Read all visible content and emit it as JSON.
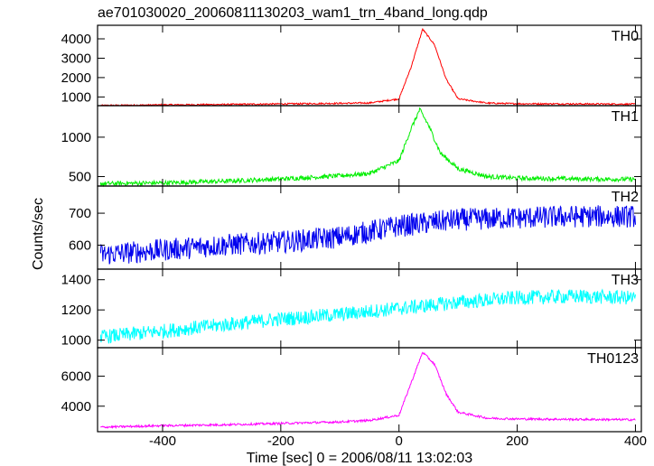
{
  "title": "ae701030020_20060811130203_wam1_trn_4band_long.qdp",
  "xlabel": "Time [sec] 0 = 2006/08/11 13:02:03",
  "ylabel": "Counts/sec",
  "chart_data": {
    "type": "line",
    "title": "ae701030020_20060811130203_wam1_trn_4band_long.qdp",
    "xlabel": "Time [sec] 0 = 2006/08/11 13:02:03",
    "ylabel": "Counts/sec",
    "xlim": [
      -510,
      410
    ],
    "x_ticks": [
      "-400",
      "-200",
      "0",
      "200",
      "400"
    ],
    "x_tick_values": [
      -400,
      -200,
      0,
      200,
      400
    ],
    "grid": false,
    "panels": [
      {
        "name": "TH0",
        "color": "#ff0000",
        "ylim": [
          550,
          4700
        ],
        "y_ticks": [
          "1000",
          "2000",
          "3000",
          "4000"
        ],
        "y_tick_values": [
          1000,
          2000,
          3000,
          4000
        ],
        "x": [
          -505,
          -400,
          -300,
          -200,
          -100,
          -50,
          0,
          20,
          40,
          60,
          80,
          100,
          150,
          200,
          300,
          400
        ],
        "y": [
          560,
          590,
          610,
          640,
          670,
          690,
          900,
          2500,
          4500,
          3700,
          1900,
          900,
          680,
          650,
          640,
          630
        ],
        "noise": 25
      },
      {
        "name": "TH1",
        "color": "#00ee00",
        "ylim": [
          380,
          1400
        ],
        "y_ticks": [
          "500",
          "1000"
        ],
        "y_tick_values": [
          500,
          1000
        ],
        "x": [
          -505,
          -400,
          -300,
          -200,
          -100,
          -50,
          0,
          20,
          35,
          50,
          70,
          100,
          150,
          200,
          300,
          400
        ],
        "y": [
          410,
          420,
          440,
          470,
          510,
          540,
          700,
          1100,
          1350,
          1150,
          800,
          600,
          500,
          480,
          470,
          465
        ],
        "noise": 18
      },
      {
        "name": "TH2",
        "color": "#0000ee",
        "ylim": [
          525,
          785
        ],
        "y_ticks": [
          "600",
          "700"
        ],
        "y_tick_values": [
          600,
          700
        ],
        "x": [
          -505,
          -400,
          -300,
          -200,
          -100,
          0,
          100,
          200,
          300,
          400
        ],
        "y": [
          570,
          585,
          600,
          610,
          625,
          660,
          680,
          685,
          690,
          690
        ],
        "noise": 22
      },
      {
        "name": "TH3",
        "color": "#00ffff",
        "ylim": [
          950,
          1470
        ],
        "y_ticks": [
          "1000",
          "1200",
          "1400"
        ],
        "y_tick_values": [
          1000,
          1200,
          1400
        ],
        "x": [
          -505,
          -400,
          -300,
          -200,
          -100,
          0,
          100,
          200,
          300,
          400
        ],
        "y": [
          1020,
          1060,
          1100,
          1140,
          1170,
          1210,
          1250,
          1280,
          1290,
          1280
        ],
        "noise": 30
      },
      {
        "name": "TH0123",
        "color": "#ff00ff",
        "ylim": [
          2300,
          7900
        ],
        "y_ticks": [
          "4000",
          "6000"
        ],
        "y_tick_values": [
          4000,
          6000
        ],
        "x": [
          -505,
          -400,
          -300,
          -200,
          -100,
          -50,
          0,
          20,
          40,
          60,
          80,
          100,
          150,
          200,
          300,
          400
        ],
        "y": [
          2600,
          2700,
          2760,
          2850,
          2950,
          3050,
          3400,
          5500,
          7600,
          6800,
          4800,
          3600,
          3200,
          3150,
          3120,
          3100
        ],
        "noise": 45
      }
    ]
  }
}
